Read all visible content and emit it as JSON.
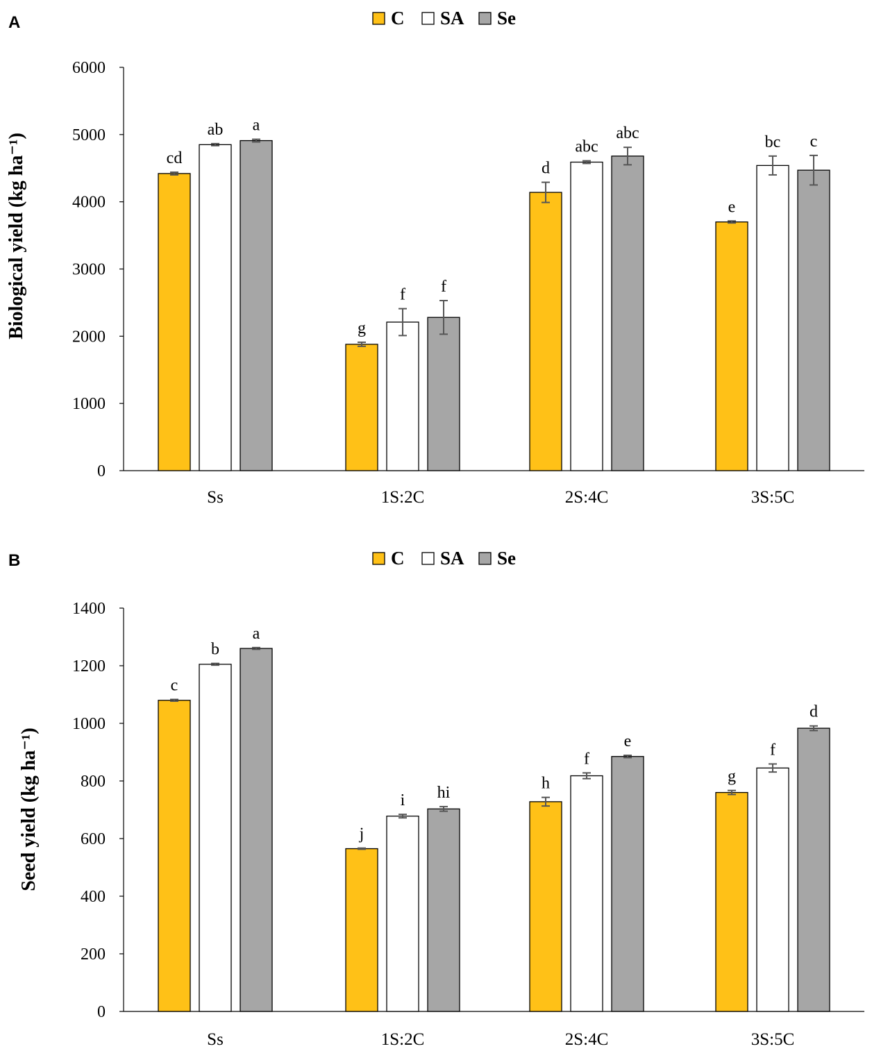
{
  "legend": [
    {
      "label": "C",
      "color": "#FFC117"
    },
    {
      "label": "SA",
      "color": "#FFFFFF"
    },
    {
      "label": "Se",
      "color": "#A6A6A6"
    }
  ],
  "chart_data": [
    {
      "type": "bar",
      "panel": "A",
      "categories": [
        "Ss",
        "1S:2C",
        "2S:4C",
        "3S:5C"
      ],
      "ylabel": "Biological yield (kg ha⁻¹)",
      "xlabel": "",
      "ylim": [
        0,
        6000
      ],
      "yticks": [
        0,
        1000,
        2000,
        3000,
        4000,
        5000,
        6000
      ],
      "series": [
        {
          "name": "C",
          "values": [
            4420,
            1880,
            4140,
            3700
          ],
          "errors": [
            20,
            30,
            150,
            15
          ],
          "letters": [
            "cd",
            "g",
            "d",
            "e"
          ]
        },
        {
          "name": "SA",
          "values": [
            4850,
            2210,
            4590,
            4540
          ],
          "errors": [
            15,
            200,
            20,
            140
          ],
          "letters": [
            "ab",
            "f",
            "abc",
            "bc"
          ]
        },
        {
          "name": "Se",
          "values": [
            4910,
            2280,
            4680,
            4470
          ],
          "errors": [
            20,
            250,
            130,
            220
          ],
          "letters": [
            "a",
            "f",
            "abc",
            "c"
          ]
        }
      ]
    },
    {
      "type": "bar",
      "panel": "B",
      "categories": [
        "Ss",
        "1S:2C",
        "2S:4C",
        "3S:5C"
      ],
      "ylabel": "Seed yield (kg ha⁻¹)",
      "xlabel": "",
      "ylim": [
        0,
        1400
      ],
      "yticks": [
        0,
        200,
        400,
        600,
        800,
        1000,
        1200,
        1400
      ],
      "series": [
        {
          "name": "C",
          "values": [
            1080,
            565,
            728,
            760
          ],
          "errors": [
            3,
            2,
            15,
            7
          ],
          "letters": [
            "c",
            "j",
            "h",
            "g"
          ]
        },
        {
          "name": "SA",
          "values": [
            1205,
            678,
            818,
            845
          ],
          "errors": [
            3,
            6,
            10,
            14
          ],
          "letters": [
            "b",
            "i",
            "f",
            "f"
          ]
        },
        {
          "name": "Se",
          "values": [
            1260,
            703,
            885,
            983
          ],
          "errors": [
            3,
            8,
            4,
            8
          ],
          "letters": [
            "a",
            "hi",
            "e",
            "d"
          ]
        }
      ]
    }
  ]
}
